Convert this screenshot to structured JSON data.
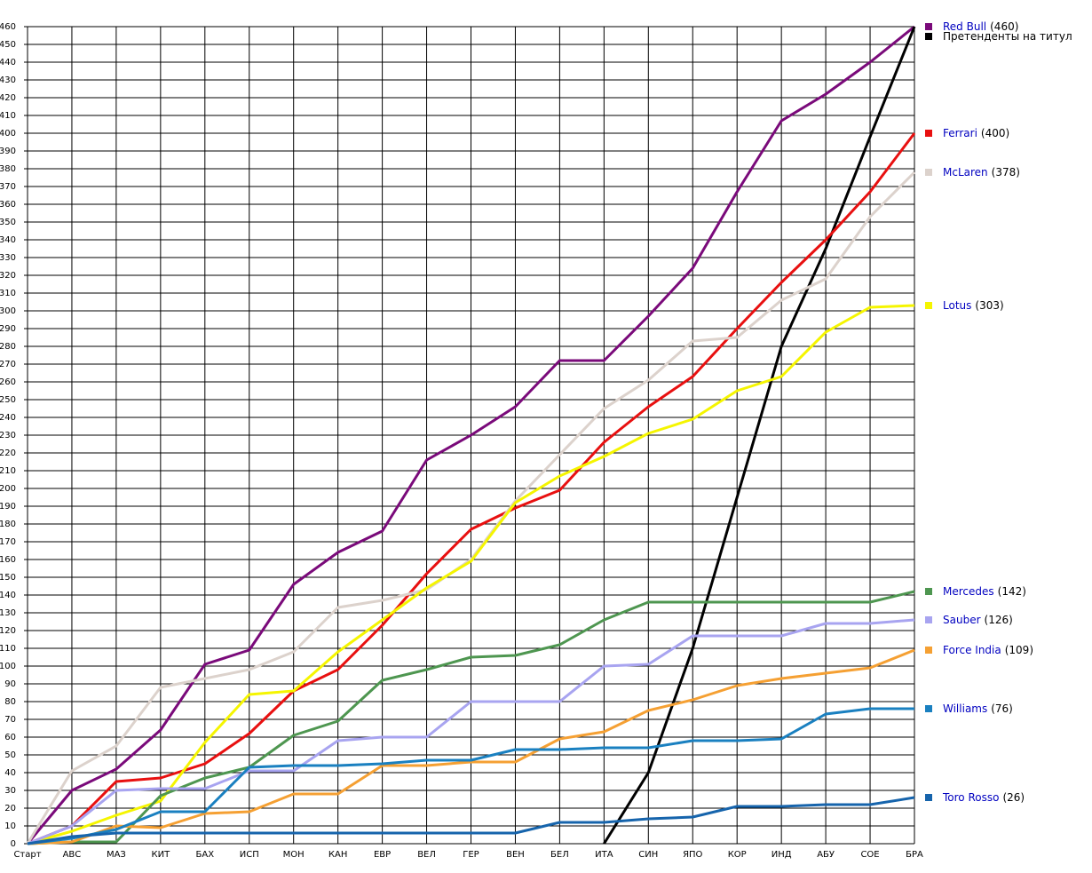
{
  "chart_data": {
    "type": "line",
    "categories": [
      "Старт",
      "АВС",
      "МАЗ",
      "КИТ",
      "БАХ",
      "ИСП",
      "МОН",
      "КАН",
      "ЕВР",
      "ВЕЛ",
      "ГЕР",
      "ВЕН",
      "БЕЛ",
      "ИТА",
      "СИН",
      "ЯПО",
      "КОР",
      "ИНД",
      "АБУ",
      "СОЕ",
      "БРА"
    ],
    "ylim": [
      0,
      460
    ],
    "yticks": [
      0,
      10,
      20,
      30,
      40,
      50,
      60,
      70,
      80,
      90,
      100,
      110,
      120,
      130,
      140,
      150,
      160,
      170,
      180,
      190,
      200,
      210,
      220,
      230,
      240,
      250,
      260,
      270,
      280,
      290,
      300,
      310,
      320,
      330,
      340,
      350,
      360,
      370,
      380,
      390,
      400,
      410,
      420,
      430,
      440,
      450,
      460
    ],
    "grid": true,
    "series": [
      {
        "name": "Red Bull",
        "end_label": "(460)",
        "color": "#7a0a7a",
        "values": [
          0,
          30,
          42,
          64,
          101,
          109,
          146,
          164,
          176,
          216,
          230,
          246,
          272,
          272,
          297,
          324,
          367,
          407,
          422,
          440,
          460
        ]
      },
      {
        "name": "Претенденты на титул",
        "color": "#000000",
        "values": [
          null,
          null,
          null,
          null,
          null,
          null,
          null,
          null,
          null,
          null,
          null,
          null,
          null,
          0,
          40,
          110,
          195,
          280,
          335,
          398,
          460
        ]
      },
      {
        "name": "Ferrari",
        "end_label": "(400)",
        "color": "#e81010",
        "values": [
          0,
          10,
          35,
          37,
          45,
          62,
          86,
          98,
          123,
          152,
          177,
          189,
          199,
          226,
          246,
          263,
          290,
          316,
          340,
          367,
          400
        ]
      },
      {
        "name": "McLaren",
        "end_label": "(378)",
        "color": "#dcd2cc",
        "values": [
          0,
          41,
          55,
          88,
          93,
          98,
          108,
          133,
          137,
          143,
          160,
          193,
          219,
          245,
          261,
          283,
          285,
          306,
          318,
          353,
          378
        ]
      },
      {
        "name": "Lotus",
        "end_label": "(303)",
        "color": "#f5f500",
        "values": [
          0,
          7,
          16,
          24,
          57,
          84,
          86,
          108,
          126,
          144,
          159,
          192,
          207,
          218,
          231,
          239,
          255,
          263,
          288,
          302,
          303
        ]
      },
      {
        "name": "Mercedes",
        "end_label": "(142)",
        "color": "#4e9650",
        "values": [
          0,
          1,
          1,
          27,
          37,
          43,
          61,
          69,
          92,
          98,
          105,
          106,
          112,
          126,
          136,
          136,
          136,
          136,
          136,
          136,
          142
        ]
      },
      {
        "name": "Sauber",
        "end_label": "(126)",
        "color": "#a8a4f0",
        "values": [
          0,
          10,
          30,
          31,
          31,
          41,
          41,
          58,
          60,
          60,
          80,
          80,
          80,
          100,
          101,
          117,
          117,
          117,
          124,
          124,
          126
        ]
      },
      {
        "name": "Force India",
        "end_label": "(109)",
        "color": "#f5a033",
        "values": [
          0,
          1,
          10,
          9,
          17,
          18,
          28,
          28,
          44,
          44,
          46,
          46,
          59,
          63,
          75,
          81,
          89,
          93,
          96,
          99,
          109
        ]
      },
      {
        "name": "Williams",
        "end_label": "(76)",
        "color": "#1a80c0",
        "values": [
          0,
          3,
          8,
          18,
          18,
          43,
          44,
          44,
          45,
          47,
          47,
          53,
          53,
          54,
          54,
          58,
          58,
          59,
          73,
          76,
          76
        ]
      },
      {
        "name": "Toro Rosso",
        "end_label": "(26)",
        "color": "#1664ac",
        "values": [
          0,
          4,
          6,
          6,
          6,
          6,
          6,
          6,
          6,
          6,
          6,
          6,
          12,
          12,
          14,
          15,
          21,
          21,
          22,
          22,
          26
        ]
      }
    ]
  }
}
